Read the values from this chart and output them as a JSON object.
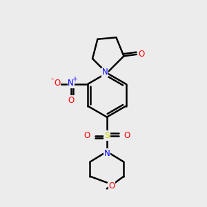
{
  "background_color": "#ececec",
  "bond_color": "#000000",
  "N_color": "#0000ff",
  "O_color": "#ff0000",
  "S_color": "#cccc00",
  "lw": 1.8,
  "xlim": [
    0,
    10
  ],
  "ylim": [
    0,
    12
  ],
  "figsize": [
    3.0,
    3.0
  ],
  "dpi": 100
}
